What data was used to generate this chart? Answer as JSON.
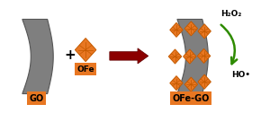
{
  "bg_color": "#ffffff",
  "gray_color": "#7f7f7f",
  "gray_edge": "#555555",
  "orange_color": "#E87722",
  "orange_dark": "#C45A00",
  "arrow_color": "#8B0000",
  "green_color": "#2E8B00",
  "label_color": "#E87722",
  "text_color": "#111111",
  "go_label": "GO",
  "ofe_label": "OFe",
  "ofego_label": "OFe-GO",
  "h2o2_label": "H₂O₂",
  "ho_label": "HO•",
  "plus_symbol": "+",
  "fig_width": 3.0,
  "fig_height": 1.26,
  "xlim": [
    0,
    10
  ],
  "ylim": [
    0,
    4.2
  ]
}
